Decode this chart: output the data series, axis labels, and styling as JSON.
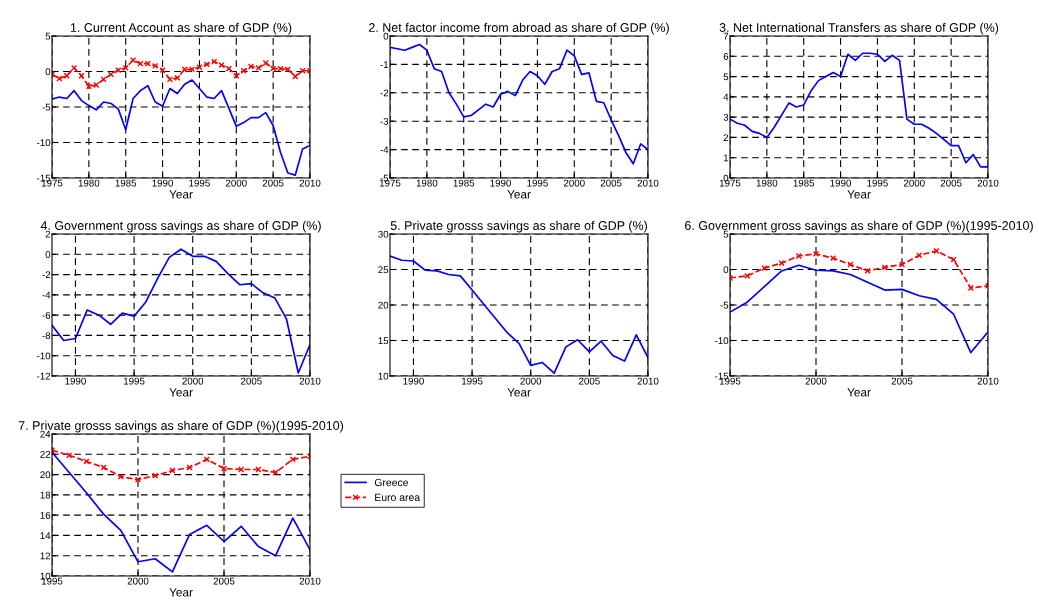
{
  "chart_data": [
    {
      "type": "line",
      "title": "1. Current Account as share of GDP (%)",
      "xlabel": "Year",
      "x": [
        1975,
        1976,
        1977,
        1978,
        1979,
        1980,
        1981,
        1982,
        1983,
        1984,
        1985,
        1986,
        1987,
        1988,
        1989,
        1990,
        1991,
        1992,
        1993,
        1994,
        1995,
        1996,
        1997,
        1998,
        1999,
        2000,
        2001,
        2002,
        2003,
        2004,
        2005,
        2006,
        2007,
        2008,
        2009,
        2010
      ],
      "xlim": [
        1975,
        2010
      ],
      "xticks": [
        1975,
        1980,
        1985,
        1990,
        1995,
        2000,
        2005,
        2010
      ],
      "ylim": [
        -15,
        5
      ],
      "yticks": [
        -15,
        -10,
        -5,
        0,
        5
      ],
      "grid": true,
      "series": [
        {
          "color": "#0000ff",
          "marker": "none",
          "line_style": "solid",
          "values": [
            -3.9,
            -3.6,
            -3.8,
            -2.7,
            -4.1,
            -4.8,
            -5.4,
            -4.3,
            -4.5,
            -5.3,
            -8.2,
            -3.8,
            -2.7,
            -2.0,
            -4.3,
            -4.9,
            -2.4,
            -3.1,
            -1.8,
            -1.2,
            -2.4,
            -3.6,
            -3.8,
            -2.7,
            -5.2,
            -7.7,
            -7.2,
            -6.5,
            -6.5,
            -5.8,
            -7.6,
            -11.4,
            -14.3,
            -14.6,
            -10.9,
            -10.4
          ]
        },
        {
          "color": "#ff0000",
          "marker": "cross",
          "line_style": "dashed",
          "values": [
            -0.4,
            -1.0,
            -0.6,
            0.5,
            -0.6,
            -2.1,
            -1.9,
            -1.1,
            -0.4,
            0.2,
            0.5,
            1.6,
            1.1,
            1.1,
            0.8,
            0.2,
            -1.1,
            -0.9,
            0.3,
            0.3,
            0.6,
            1.0,
            1.4,
            0.9,
            0.4,
            -0.6,
            0.1,
            0.7,
            0.5,
            1.2,
            0.4,
            0.4,
            0.3,
            -0.7,
            0.1,
            0.1
          ]
        }
      ]
    },
    {
      "type": "line",
      "title": "2. Net factor income from abroad as share of GDP (%)",
      "xlabel": "Year",
      "x": [
        1975,
        1976,
        1977,
        1978,
        1979,
        1980,
        1981,
        1982,
        1983,
        1984,
        1985,
        1986,
        1987,
        1988,
        1989,
        1990,
        1991,
        1992,
        1993,
        1994,
        1995,
        1996,
        1997,
        1998,
        1999,
        2000,
        2001,
        2002,
        2003,
        2004,
        2005,
        2006,
        2007,
        2008,
        2009,
        2010
      ],
      "xlim": [
        1975,
        2010
      ],
      "xticks": [
        1975,
        1980,
        1985,
        1990,
        1995,
        2000,
        2005,
        2010
      ],
      "ylim": [
        -5,
        0
      ],
      "yticks": [
        -5,
        -4,
        -3,
        -2,
        -1,
        0
      ],
      "grid": true,
      "series": [
        {
          "color": "#0000ff",
          "marker": "none",
          "line_style": "solid",
          "values": [
            -0.4,
            -0.45,
            -0.5,
            -0.4,
            -0.3,
            -0.5,
            -1.15,
            -1.25,
            -2.0,
            -2.4,
            -2.85,
            -2.8,
            -2.6,
            -2.4,
            -2.5,
            -2.05,
            -1.95,
            -2.1,
            -1.55,
            -1.25,
            -1.4,
            -1.7,
            -1.25,
            -1.15,
            -0.5,
            -0.7,
            -1.35,
            -1.3,
            -2.3,
            -2.35,
            -2.95,
            -3.5,
            -4.1,
            -4.5,
            -3.8,
            -4.0
          ]
        }
      ]
    },
    {
      "type": "line",
      "title": "3. Net International Transfers as share of GDP (%)",
      "xlabel": "Year",
      "x": [
        1975,
        1976,
        1977,
        1978,
        1979,
        1980,
        1981,
        1982,
        1983,
        1984,
        1985,
        1986,
        1987,
        1988,
        1989,
        1990,
        1991,
        1992,
        1993,
        1994,
        1995,
        1996,
        1997,
        1998,
        1999,
        2000,
        2001,
        2002,
        2003,
        2004,
        2005,
        2006,
        2007,
        2008,
        2009,
        2010
      ],
      "xlim": [
        1975,
        2010
      ],
      "xticks": [
        1975,
        1980,
        1985,
        1990,
        1995,
        2000,
        2005,
        2010
      ],
      "ylim": [
        0,
        7
      ],
      "yticks": [
        0,
        1,
        2,
        3,
        4,
        5,
        6,
        7
      ],
      "grid": true,
      "series": [
        {
          "color": "#0000ff",
          "marker": "none",
          "line_style": "solid",
          "values": [
            2.9,
            2.7,
            2.6,
            2.3,
            2.2,
            2.0,
            2.5,
            3.1,
            3.7,
            3.5,
            3.6,
            4.3,
            4.8,
            5.0,
            5.2,
            5.0,
            6.1,
            5.8,
            6.15,
            6.15,
            6.1,
            5.75,
            6.05,
            5.8,
            2.9,
            2.65,
            2.65,
            2.45,
            2.2,
            1.9,
            1.6,
            1.6,
            0.75,
            1.15,
            0.55,
            0.55
          ]
        }
      ]
    },
    {
      "type": "line",
      "title": "4. Government gross savings as share of GDP (%)",
      "xlabel": "Year",
      "x": [
        1988,
        1989,
        1990,
        1991,
        1992,
        1993,
        1994,
        1995,
        1996,
        1997,
        1998,
        1999,
        2000,
        2001,
        2002,
        2003,
        2004,
        2005,
        2006,
        2007,
        2008,
        2009,
        2010
      ],
      "xlim": [
        1988,
        2010
      ],
      "xticks": [
        1990,
        1995,
        2000,
        2005,
        2010
      ],
      "ylim": [
        -12,
        2
      ],
      "yticks": [
        -12,
        -10,
        -8,
        -6,
        -4,
        -2,
        0,
        2
      ],
      "grid": true,
      "series": [
        {
          "color": "#0000ff",
          "marker": "none",
          "line_style": "solid",
          "values": [
            -7.0,
            -8.5,
            -8.3,
            -5.5,
            -6.0,
            -6.9,
            -5.8,
            -6.1,
            -4.7,
            -2.4,
            -0.3,
            0.5,
            -0.2,
            -0.2,
            -0.7,
            -1.9,
            -3.0,
            -2.9,
            -3.8,
            -4.3,
            -6.4,
            -11.7,
            -8.9
          ]
        }
      ]
    },
    {
      "type": "line",
      "title": "5. Private grosss savings as share of GDP (%)",
      "xlabel": "Year",
      "x": [
        1988,
        1989,
        1990,
        1991,
        1992,
        1993,
        1994,
        1995,
        1996,
        1997,
        1998,
        1999,
        2000,
        2001,
        2002,
        2003,
        2004,
        2005,
        2006,
        2007,
        2008,
        2009,
        2010
      ],
      "xlim": [
        1988,
        2010
      ],
      "xticks": [
        1990,
        1995,
        2000,
        2005,
        2010
      ],
      "ylim": [
        10,
        30
      ],
      "yticks": [
        10,
        15,
        20,
        25,
        30
      ],
      "grid": true,
      "series": [
        {
          "color": "#0000ff",
          "marker": "none",
          "line_style": "solid",
          "values": [
            26.9,
            26.3,
            26.2,
            24.9,
            24.8,
            24.3,
            24.1,
            22.1,
            20.1,
            18.1,
            16.1,
            14.6,
            11.5,
            11.9,
            10.4,
            14.1,
            15.1,
            13.4,
            14.9,
            12.9,
            12.1,
            15.8,
            12.6
          ]
        }
      ]
    },
    {
      "type": "line",
      "title": "6. Government gross savings as share of GDP (%)(1995-2010)",
      "xlabel": "Year",
      "x": [
        1995,
        1996,
        1997,
        1998,
        1999,
        2000,
        2001,
        2002,
        2003,
        2004,
        2005,
        2006,
        2007,
        2008,
        2009,
        2010
      ],
      "xlim": [
        1995,
        2010
      ],
      "xticks": [
        1995,
        2000,
        2005,
        2010
      ],
      "ylim": [
        -15,
        5
      ],
      "yticks": [
        -15,
        -10,
        -5,
        0,
        5
      ],
      "grid": true,
      "series": [
        {
          "color": "#0000ff",
          "marker": "none",
          "line_style": "solid",
          "values": [
            -6.0,
            -4.6,
            -2.4,
            -0.2,
            0.6,
            -0.1,
            -0.2,
            -0.7,
            -1.8,
            -2.9,
            -2.8,
            -3.7,
            -4.2,
            -6.3,
            -11.7,
            -8.8
          ]
        },
        {
          "color": "#ff0000",
          "marker": "cross",
          "line_style": "dashed",
          "values": [
            -1.2,
            -0.9,
            0.2,
            0.9,
            1.9,
            2.2,
            1.6,
            0.7,
            -0.2,
            0.3,
            0.7,
            2.0,
            2.6,
            1.4,
            -2.6,
            -2.3
          ]
        }
      ]
    },
    {
      "type": "line",
      "title": "7. Private grosss savings as share of GDP (%)(1995-2010)",
      "xlabel": "Year",
      "x": [
        1995,
        1996,
        1997,
        1998,
        1999,
        2000,
        2001,
        2002,
        2003,
        2004,
        2005,
        2006,
        2007,
        2008,
        2009,
        2010
      ],
      "xlim": [
        1995,
        2010
      ],
      "xticks": [
        1995,
        2000,
        2005,
        2010
      ],
      "ylim": [
        10,
        24
      ],
      "yticks": [
        10,
        12,
        14,
        16,
        18,
        20,
        22,
        24
      ],
      "grid": true,
      "legend": "right",
      "series": [
        {
          "name": "Greece",
          "color": "#0000ff",
          "marker": "none",
          "line_style": "solid",
          "values": [
            22.2,
            20.2,
            18.2,
            16.1,
            14.5,
            11.4,
            11.7,
            10.4,
            14.1,
            15.0,
            13.4,
            14.9,
            12.9,
            12.0,
            15.7,
            12.6
          ]
        },
        {
          "name": "Euro area",
          "color": "#ff0000",
          "marker": "cross",
          "line_style": "dashed",
          "values": [
            22.4,
            21.9,
            21.3,
            20.7,
            19.8,
            19.5,
            19.9,
            20.4,
            20.7,
            21.5,
            20.6,
            20.5,
            20.5,
            20.2,
            21.5,
            21.8
          ]
        }
      ]
    }
  ]
}
